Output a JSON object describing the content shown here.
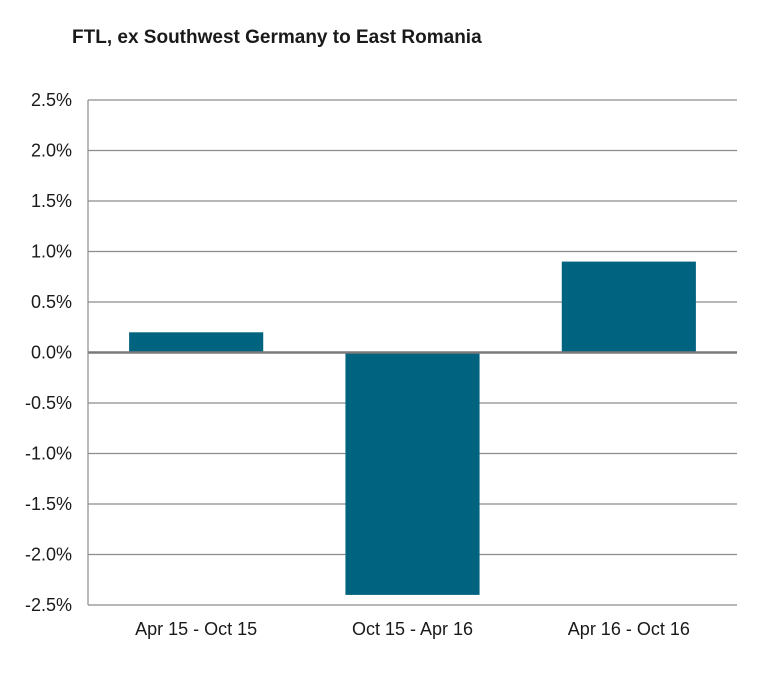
{
  "chart_data": {
    "type": "bar",
    "title": "FTL, ex Southwest Germany to East Romania",
    "categories": [
      "Apr 15 - Oct 15",
      "Oct 15 - Apr 16",
      "Apr 16 - Oct 16"
    ],
    "values": [
      0.2,
      -2.4,
      0.9
    ],
    "ylim": [
      -2.5,
      2.5
    ],
    "yticks": [
      2.5,
      2.0,
      1.5,
      1.0,
      0.5,
      0.0,
      -0.5,
      -1.0,
      -1.5,
      -2.0,
      -2.5
    ],
    "ytick_labels": [
      "2.5%",
      "2.0%",
      "1.5%",
      "1.0%",
      "0.5%",
      "0.0%",
      "-0.5%",
      "-1.0%",
      "-1.5%",
      "-2.0%",
      "-2.5%"
    ],
    "grid": true,
    "xlabel": "",
    "ylabel": "",
    "colors": {
      "bar": "#00637f",
      "grid": "#8c8c8c",
      "axis": "#8c8c8c",
      "zero_line": "#7a7a7a"
    }
  }
}
